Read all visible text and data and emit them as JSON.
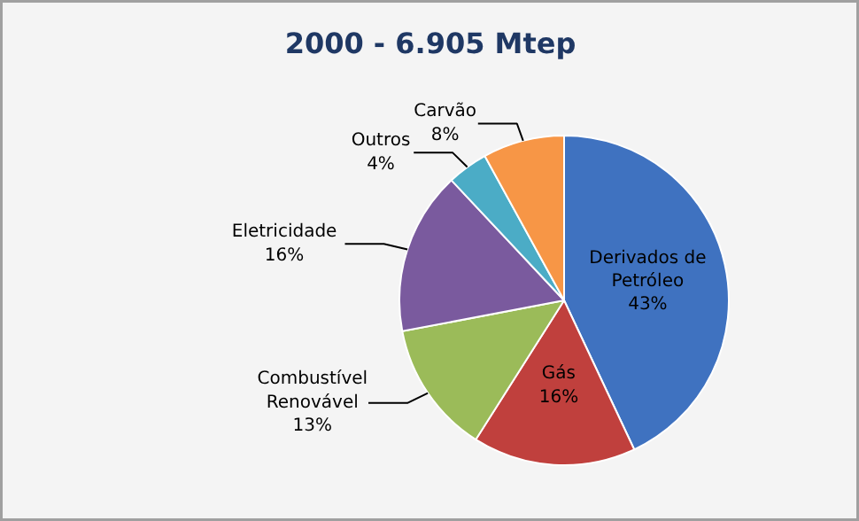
{
  "chart_data": {
    "type": "pie",
    "title": "2000 - 6.905 Mtep",
    "categories": [
      "Derivados de Petróleo",
      "Gás",
      "Combustível Renovável",
      "Eletricidade",
      "Outros",
      "Carvão"
    ],
    "values": [
      43,
      16,
      13,
      16,
      4,
      8
    ],
    "colors": [
      "#3f72c0",
      "#c0403d",
      "#9bbb59",
      "#7a5a9e",
      "#4bacc6",
      "#f79646"
    ],
    "value_labels": [
      "43%",
      "16%",
      "13%",
      "16%",
      "4%",
      "8%"
    ]
  }
}
